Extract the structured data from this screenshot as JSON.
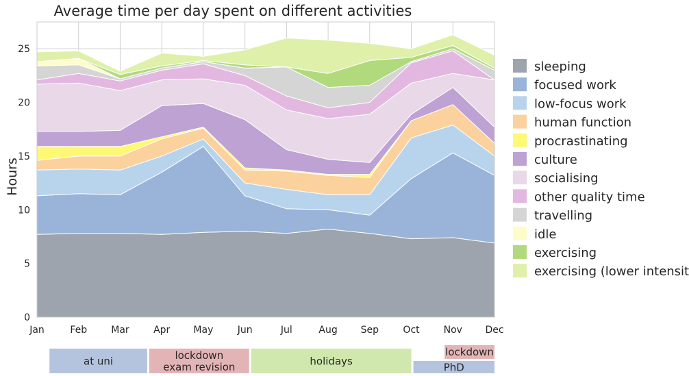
{
  "chart_data": {
    "type": "area",
    "title": "Average time per day spent on different activities",
    "xlabel": "",
    "ylabel": "Hours",
    "ylim": [
      0,
      27.5
    ],
    "yticks": [
      0,
      5,
      10,
      15,
      20,
      25
    ],
    "categories": [
      "Jan",
      "Feb",
      "Mar",
      "Apr",
      "May",
      "Jun",
      "Jul",
      "Aug",
      "Sep",
      "Oct",
      "Nov",
      "Dec"
    ],
    "series": [
      {
        "name": "sleeping",
        "color": "#9ea4ad",
        "values": [
          7.7,
          7.8,
          7.8,
          7.7,
          7.9,
          8.0,
          7.8,
          8.2,
          7.8,
          7.3,
          7.4,
          6.9
        ]
      },
      {
        "name": "focused work",
        "color": "#9ab3d9",
        "values": [
          3.6,
          3.7,
          3.6,
          5.8,
          8.0,
          3.3,
          2.3,
          1.8,
          1.7,
          5.6,
          7.9,
          6.3
        ]
      },
      {
        "name": "low-focus work",
        "color": "#b8d4ed",
        "values": [
          2.4,
          2.3,
          2.3,
          1.5,
          0.7,
          1.2,
          1.8,
          1.4,
          1.9,
          3.8,
          2.6,
          1.8
        ]
      },
      {
        "name": "human function",
        "color": "#fbd19d",
        "values": [
          0.9,
          1.2,
          1.3,
          1.6,
          1.0,
          1.2,
          1.7,
          1.8,
          1.6,
          1.6,
          1.9,
          1.2
        ]
      },
      {
        "name": "procrastinating",
        "color": "#fef975",
        "values": [
          1.3,
          0.9,
          0.9,
          0.2,
          0.1,
          0.2,
          0.1,
          0.1,
          0.3,
          0.0,
          0.0,
          0.0
        ]
      },
      {
        "name": "culture",
        "color": "#bea2d4",
        "values": [
          1.4,
          1.4,
          1.5,
          2.9,
          2.2,
          4.5,
          1.9,
          1.4,
          1.1,
          0.6,
          1.6,
          1.5
        ]
      },
      {
        "name": "socialising",
        "color": "#e8d8e8",
        "values": [
          4.4,
          4.5,
          3.7,
          2.4,
          2.3,
          3.2,
          3.7,
          3.8,
          4.5,
          2.9,
          1.3,
          4.4
        ]
      },
      {
        "name": "other quality time",
        "color": "#e3b8e0",
        "values": [
          0.4,
          0.9,
          0.9,
          0.9,
          1.4,
          0.9,
          1.3,
          1.0,
          1.1,
          1.9,
          2.1,
          0.0
        ]
      },
      {
        "name": "travelling",
        "color": "#d5d5d5",
        "values": [
          1.3,
          0.8,
          0.2,
          0.2,
          0.2,
          0.7,
          2.7,
          1.9,
          1.6,
          0.1,
          0.2,
          0.9
        ]
      },
      {
        "name": "idle",
        "color": "#fefccb",
        "values": [
          0.4,
          0.6,
          0.0,
          0.0,
          0.0,
          0.0,
          0.0,
          0.0,
          0.0,
          0.0,
          0.0,
          0.0
        ]
      },
      {
        "name": "exercising",
        "color": "#b1da7d",
        "values": [
          0.0,
          0.0,
          0.4,
          0.2,
          0.1,
          0.3,
          0.0,
          1.3,
          2.3,
          0.4,
          0.3,
          0.2
        ]
      },
      {
        "name": "exercising (lower intensity)",
        "color": "#dff0aa",
        "values": [
          0.9,
          0.7,
          0.3,
          1.2,
          0.4,
          1.4,
          2.7,
          3.1,
          1.6,
          0.8,
          1.0,
          1.2
        ]
      }
    ]
  },
  "periods": [
    {
      "label": "at uni",
      "from": 0.3,
      "to": 2.65,
      "row": "bottom",
      "color": "#b4c4de"
    },
    {
      "label": "lockdown\nexam revision",
      "from": 2.7,
      "to": 5.1,
      "row": "bottom",
      "color": "#e3b4b6"
    },
    {
      "label": "holidays",
      "from": 5.15,
      "to": 9.0,
      "row": "bottom",
      "color": "#d0e8ad"
    },
    {
      "label": "PhD",
      "from": 9.05,
      "to": 11.0,
      "row": "lower",
      "color": "#b4c4de"
    },
    {
      "label": "lockdown",
      "from": 9.8,
      "to": 11.0,
      "row": "upper",
      "color": "#e3b4b6"
    }
  ]
}
